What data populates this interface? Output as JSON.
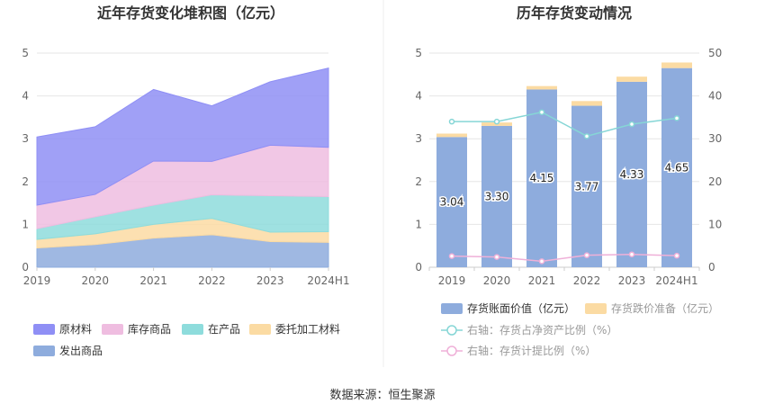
{
  "footer": {
    "source": "数据来源：恒生聚源"
  },
  "chart_data": [
    {
      "type": "area",
      "stacked": true,
      "title": "近年存货变化堆积图（亿元）",
      "categories": [
        "2019",
        "2020",
        "2021",
        "2022",
        "2023",
        "2024H1"
      ],
      "ylim": [
        0,
        5
      ],
      "yticks": [
        "0",
        "1",
        "2",
        "3",
        "4",
        "5"
      ],
      "grid": true,
      "legend_position": "bottom",
      "series": [
        {
          "name": "发出商品",
          "color": "#8eacdd",
          "values": [
            0.45,
            0.53,
            0.68,
            0.76,
            0.6,
            0.58
          ]
        },
        {
          "name": "委托加工材料",
          "color": "#fbdba3",
          "values": [
            0.2,
            0.25,
            0.32,
            0.38,
            0.22,
            0.25
          ]
        },
        {
          "name": "在产品",
          "color": "#8edcdc",
          "values": [
            0.25,
            0.4,
            0.45,
            0.55,
            0.85,
            0.82
          ]
        },
        {
          "name": "库存商品",
          "color": "#efbde0",
          "values": [
            0.55,
            0.52,
            1.03,
            0.78,
            1.18,
            1.15
          ]
        },
        {
          "name": "原材料",
          "color": "#8f8ff5",
          "values": [
            1.59,
            1.58,
            1.67,
            1.3,
            1.48,
            1.85
          ]
        }
      ],
      "legend_order": [
        "原材料",
        "库存商品",
        "在产品",
        "委托加工材料",
        "发出商品"
      ]
    },
    {
      "type": "bar",
      "title": "历年存货变动情况",
      "categories": [
        "2019",
        "2020",
        "2021",
        "2022",
        "2023",
        "2024H1"
      ],
      "ylim_left": [
        0,
        5
      ],
      "yticks_left": [
        "0",
        "1",
        "2",
        "3",
        "4",
        "5"
      ],
      "ylim_right": [
        0,
        50
      ],
      "yticks_right": [
        "0",
        "10",
        "20",
        "30",
        "40",
        "50"
      ],
      "grid": true,
      "legend_position": "bottom",
      "series": [
        {
          "name": "存货账面价值（亿元）",
          "kind": "bar",
          "axis": "left",
          "color": "#8eacdd",
          "values": [
            3.04,
            3.3,
            4.15,
            3.77,
            4.33,
            4.65
          ],
          "labels": [
            "3.04",
            "3.30",
            "4.15",
            "3.77",
            "4.33",
            "4.65"
          ]
        },
        {
          "name": "存货跌价准备（亿元）",
          "kind": "bar",
          "axis": "left",
          "color": "#fbdba3",
          "values": [
            0.08,
            0.08,
            0.08,
            0.11,
            0.12,
            0.13
          ]
        },
        {
          "name": "右轴：存货占净资产比例（%）",
          "kind": "line",
          "axis": "right",
          "color": "#86d6d6",
          "values": [
            34.0,
            34.0,
            36.2,
            30.6,
            33.4,
            34.8
          ]
        },
        {
          "name": "右轴：存货计提比例（%）",
          "kind": "line",
          "axis": "right",
          "color": "#efb0d8",
          "values": [
            2.6,
            2.4,
            1.4,
            2.8,
            3.0,
            2.7
          ]
        }
      ]
    }
  ]
}
